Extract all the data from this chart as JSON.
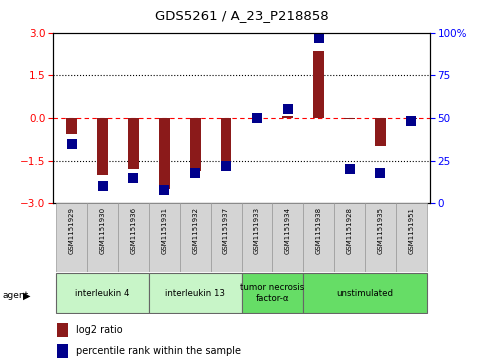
{
  "title": "GDS5261 / A_23_P218858",
  "samples": [
    "GSM1151929",
    "GSM1151930",
    "GSM1151936",
    "GSM1151931",
    "GSM1151932",
    "GSM1151937",
    "GSM1151933",
    "GSM1151934",
    "GSM1151938",
    "GSM1151928",
    "GSM1151935",
    "GSM1151951"
  ],
  "log2_ratio": [
    -0.55,
    -2.0,
    -1.8,
    -2.5,
    -1.85,
    -1.6,
    -0.08,
    0.08,
    2.35,
    -0.05,
    -1.0,
    -0.05
  ],
  "percentile": [
    35,
    10,
    15,
    8,
    18,
    22,
    50,
    55,
    97,
    20,
    18,
    48
  ],
  "ylim": [
    -3,
    3
  ],
  "right_ylim": [
    0,
    100
  ],
  "yticks_left": [
    -3,
    -1.5,
    0,
    1.5,
    3
  ],
  "yticks_right": [
    0,
    25,
    50,
    75,
    100
  ],
  "bar_color": "#8B1A1A",
  "dot_color": "#00008B",
  "agent_groups": [
    {
      "label": "interleukin 4",
      "start": 0,
      "end": 3,
      "color": "#c8f5c8"
    },
    {
      "label": "interleukin 13",
      "start": 3,
      "end": 6,
      "color": "#c8f5c8"
    },
    {
      "label": "tumor necrosis\nfactor-α",
      "start": 6,
      "end": 8,
      "color": "#66dd66"
    },
    {
      "label": "unstimulated",
      "start": 8,
      "end": 12,
      "color": "#66dd66"
    }
  ],
  "bar_width": 0.35,
  "dot_size": 45,
  "legend_items": [
    "log2 ratio",
    "percentile rank within the sample"
  ]
}
